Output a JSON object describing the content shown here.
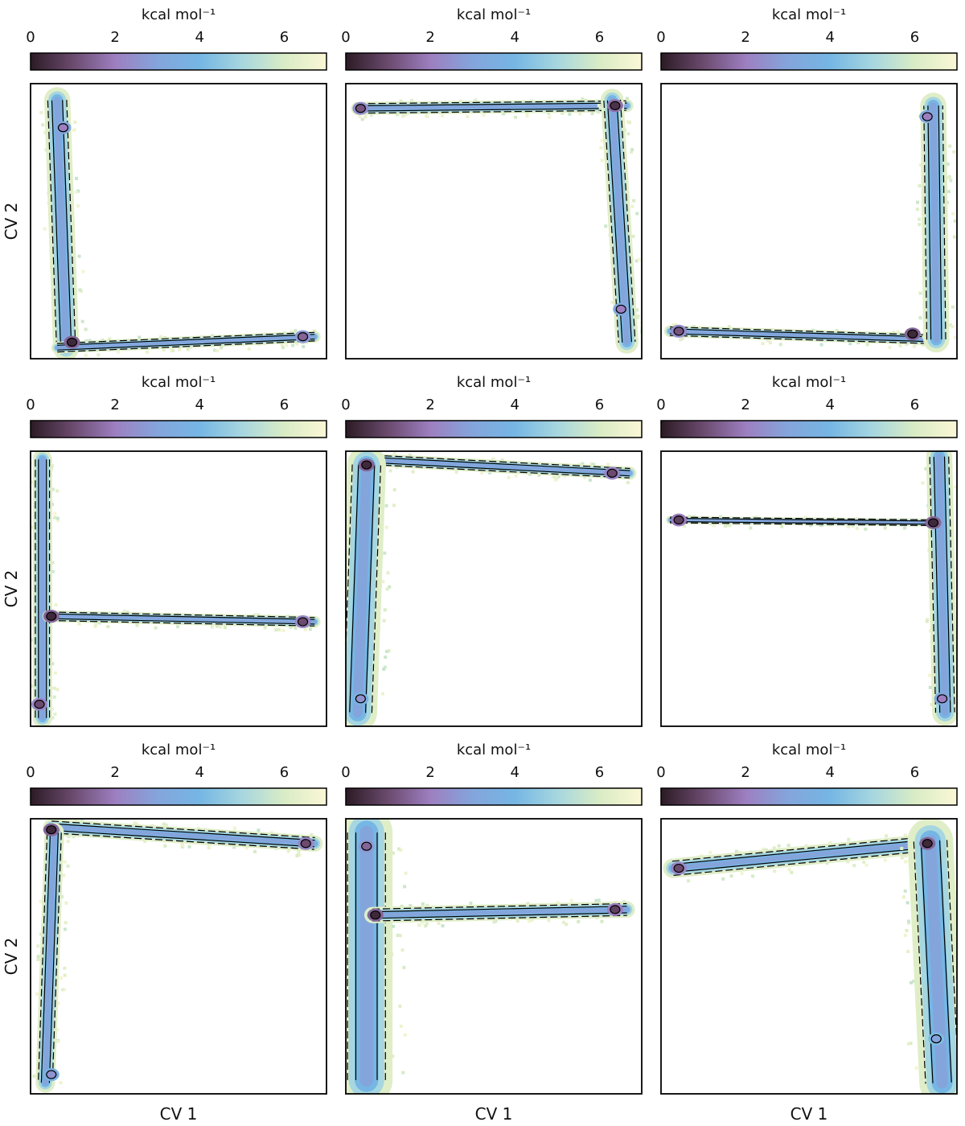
{
  "figure": {
    "colorbar_label": "kcal mol⁻¹",
    "colorbar_ticks": [
      "0",
      "2",
      "4",
      "6"
    ],
    "colorbar_range": [
      0,
      7
    ],
    "colormap": [
      "#2b1b24",
      "#6b4a6e",
      "#9d7fc0",
      "#84a5dc",
      "#75b6e4",
      "#a6d6df",
      "#d9ecc5",
      "#fbf7d6"
    ],
    "xlabel": "CV 1",
    "ylabel": "CV 2",
    "contour_color": "#000000"
  },
  "chart_data": [
    {
      "type": "heatmap",
      "panel": "row1-col1",
      "description_shape": "L",
      "branches": [
        {
          "from": [
            0.12,
            0.96
          ],
          "to": [
            0.09,
            0.06
          ],
          "width": 0.04
        },
        {
          "from": [
            0.09,
            0.96
          ],
          "to": [
            0.96,
            0.92
          ],
          "width": 0.018
        }
      ],
      "minima": [
        {
          "x": 0.14,
          "y": 0.94,
          "value": 0.3
        },
        {
          "x": 0.11,
          "y": 0.16,
          "value": 2.0
        },
        {
          "x": 0.92,
          "y": 0.92,
          "value": 1.5
        }
      ]
    },
    {
      "type": "heatmap",
      "panel": "row1-col2",
      "description_shape": "reverse-L",
      "branches": [
        {
          "from": [
            0.04,
            0.09
          ],
          "to": [
            0.95,
            0.08
          ],
          "width": 0.02
        },
        {
          "from": [
            0.9,
            0.06
          ],
          "to": [
            0.95,
            0.94
          ],
          "width": 0.035
        }
      ],
      "minima": [
        {
          "x": 0.91,
          "y": 0.08,
          "value": 0.5
        },
        {
          "x": 0.93,
          "y": 0.82,
          "value": 2.0
        },
        {
          "x": 0.05,
          "y": 0.09,
          "value": 1.2
        }
      ]
    },
    {
      "type": "heatmap",
      "panel": "row1-col3",
      "description_shape": "J",
      "branches": [
        {
          "from": [
            0.03,
            0.9
          ],
          "to": [
            0.93,
            0.93
          ],
          "width": 0.018
        },
        {
          "from": [
            0.93,
            0.93
          ],
          "to": [
            0.92,
            0.08
          ],
          "width": 0.04
        }
      ],
      "minima": [
        {
          "x": 0.85,
          "y": 0.91,
          "value": 0.3
        },
        {
          "x": 0.9,
          "y": 0.12,
          "value": 2.0
        },
        {
          "x": 0.06,
          "y": 0.9,
          "value": 1.2
        }
      ]
    },
    {
      "type": "heatmap",
      "panel": "row2-col1",
      "description_shape": "T-left",
      "branches": [
        {
          "from": [
            0.04,
            0.03
          ],
          "to": [
            0.04,
            0.97
          ],
          "width": 0.03
        },
        {
          "from": [
            0.06,
            0.6
          ],
          "to": [
            0.96,
            0.62
          ],
          "width": 0.018
        }
      ],
      "minima": [
        {
          "x": 0.07,
          "y": 0.6,
          "value": 0.3
        },
        {
          "x": 0.03,
          "y": 0.92,
          "value": 1.0
        },
        {
          "x": 0.92,
          "y": 0.62,
          "value": 1.0
        }
      ]
    },
    {
      "type": "heatmap",
      "panel": "row2-col2",
      "description_shape": "Gamma",
      "branches": [
        {
          "from": [
            0.06,
            0.03
          ],
          "to": [
            0.96,
            0.08
          ],
          "width": 0.02
        },
        {
          "from": [
            0.07,
            0.05
          ],
          "to": [
            0.04,
            0.95
          ],
          "width": 0.06
        }
      ],
      "minima": [
        {
          "x": 0.07,
          "y": 0.05,
          "value": 0.3
        },
        {
          "x": 0.9,
          "y": 0.08,
          "value": 1.0
        },
        {
          "x": 0.05,
          "y": 0.9,
          "value": 2.5
        }
      ]
    },
    {
      "type": "heatmap",
      "panel": "row2-col3",
      "description_shape": "dagger-right",
      "branches": [
        {
          "from": [
            0.03,
            0.25
          ],
          "to": [
            0.93,
            0.26
          ],
          "width": 0.012
        },
        {
          "from": [
            0.94,
            0.02
          ],
          "to": [
            0.96,
            0.95
          ],
          "width": 0.04
        }
      ],
      "minima": [
        {
          "x": 0.92,
          "y": 0.26,
          "value": 0.3
        },
        {
          "x": 0.95,
          "y": 0.9,
          "value": 2.0
        },
        {
          "x": 0.06,
          "y": 0.25,
          "value": 0.8
        }
      ]
    },
    {
      "type": "heatmap",
      "panel": "row3-col1",
      "description_shape": "Gamma-thin",
      "branches": [
        {
          "from": [
            0.07,
            0.03
          ],
          "to": [
            0.96,
            0.09
          ],
          "width": 0.025
        },
        {
          "from": [
            0.08,
            0.05
          ],
          "to": [
            0.05,
            0.96
          ],
          "width": 0.03
        }
      ],
      "minima": [
        {
          "x": 0.07,
          "y": 0.04,
          "value": 0.3
        },
        {
          "x": 0.93,
          "y": 0.09,
          "value": 1.0
        },
        {
          "x": 0.07,
          "y": 0.93,
          "value": 2.5
        }
      ]
    },
    {
      "type": "heatmap",
      "panel": "row3-col2",
      "description_shape": "T-broad",
      "branches": [
        {
          "from": [
            0.07,
            0.05
          ],
          "to": [
            0.07,
            0.95
          ],
          "width": 0.08
        },
        {
          "from": [
            0.09,
            0.35
          ],
          "to": [
            0.95,
            0.33
          ],
          "width": 0.025
        }
      ],
      "minima": [
        {
          "x": 0.1,
          "y": 0.35,
          "value": 0.3
        },
        {
          "x": 0.07,
          "y": 0.1,
          "value": 1.5
        },
        {
          "x": 0.91,
          "y": 0.33,
          "value": 0.8
        }
      ]
    },
    {
      "type": "heatmap",
      "panel": "row3-col3",
      "description_shape": "wedge",
      "branches": [
        {
          "from": [
            0.04,
            0.18
          ],
          "to": [
            0.91,
            0.09
          ],
          "width": 0.03
        },
        {
          "from": [
            0.91,
            0.08
          ],
          "to": [
            0.95,
            0.96
          ],
          "width": 0.07
        }
      ],
      "minima": [
        {
          "x": 0.9,
          "y": 0.09,
          "value": 0.3
        },
        {
          "x": 0.06,
          "y": 0.18,
          "value": 1.0
        },
        {
          "x": 0.93,
          "y": 0.8,
          "value": 3.0
        }
      ]
    }
  ]
}
